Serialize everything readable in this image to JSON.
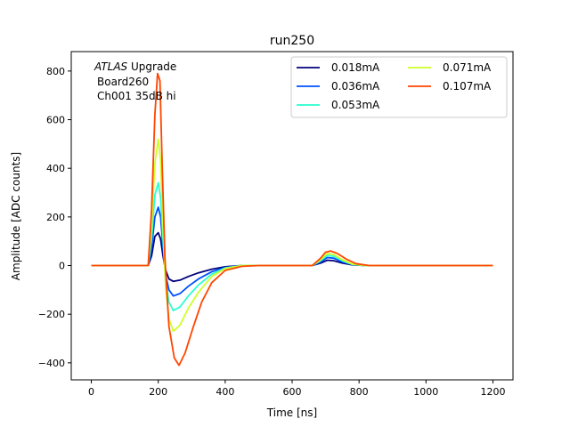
{
  "chart_data": {
    "type": "line",
    "title": "run250",
    "xlabel": "Time [ns]",
    "ylabel": "Amplitude [ADC counts]",
    "xlim": [
      -60,
      1260
    ],
    "ylim": [
      -470,
      880
    ],
    "xticks": [
      0,
      200,
      400,
      600,
      800,
      1000,
      1200
    ],
    "yticks": [
      -400,
      -200,
      0,
      200,
      400,
      600,
      800
    ],
    "grid": false,
    "legend": {
      "placement": "top-right",
      "columns": 2
    },
    "annotation": {
      "line1_italic": "ATLAS",
      "line1_rest": " Upgrade",
      "line2": "Board260",
      "line3": "Ch001 35dB hi"
    },
    "series": [
      {
        "name": "0.018mA",
        "color": "#00007f",
        "points": [
          [
            0,
            0
          ],
          [
            170,
            0
          ],
          [
            180,
            40
          ],
          [
            190,
            120
          ],
          [
            200,
            135
          ],
          [
            207,
            110
          ],
          [
            214,
            40
          ],
          [
            222,
            -20
          ],
          [
            232,
            -55
          ],
          [
            245,
            -65
          ],
          [
            265,
            -60
          ],
          [
            290,
            -45
          ],
          [
            320,
            -30
          ],
          [
            360,
            -15
          ],
          [
            400,
            -5
          ],
          [
            450,
            0
          ],
          [
            660,
            0
          ],
          [
            685,
            10
          ],
          [
            705,
            22
          ],
          [
            725,
            20
          ],
          [
            750,
            10
          ],
          [
            780,
            3
          ],
          [
            820,
            0
          ],
          [
            1200,
            0
          ]
        ]
      },
      {
        "name": "0.036mA",
        "color": "#0050ff",
        "points": [
          [
            0,
            0
          ],
          [
            170,
            0
          ],
          [
            180,
            70
          ],
          [
            190,
            200
          ],
          [
            200,
            240
          ],
          [
            207,
            200
          ],
          [
            214,
            80
          ],
          [
            222,
            -40
          ],
          [
            232,
            -100
          ],
          [
            245,
            -125
          ],
          [
            265,
            -115
          ],
          [
            290,
            -85
          ],
          [
            320,
            -55
          ],
          [
            360,
            -25
          ],
          [
            400,
            -8
          ],
          [
            450,
            0
          ],
          [
            660,
            0
          ],
          [
            685,
            15
          ],
          [
            705,
            33
          ],
          [
            725,
            30
          ],
          [
            750,
            15
          ],
          [
            780,
            4
          ],
          [
            820,
            0
          ],
          [
            1200,
            0
          ]
        ]
      },
      {
        "name": "0.053mA",
        "color": "#29ffce",
        "points": [
          [
            0,
            0
          ],
          [
            170,
            0
          ],
          [
            180,
            110
          ],
          [
            190,
            290
          ],
          [
            200,
            340
          ],
          [
            207,
            280
          ],
          [
            214,
            110
          ],
          [
            222,
            -60
          ],
          [
            232,
            -150
          ],
          [
            245,
            -185
          ],
          [
            265,
            -170
          ],
          [
            290,
            -125
          ],
          [
            320,
            -80
          ],
          [
            360,
            -35
          ],
          [
            400,
            -10
          ],
          [
            450,
            0
          ],
          [
            660,
            0
          ],
          [
            685,
            20
          ],
          [
            705,
            42
          ],
          [
            725,
            38
          ],
          [
            750,
            20
          ],
          [
            780,
            5
          ],
          [
            820,
            0
          ],
          [
            1200,
            0
          ]
        ]
      },
      {
        "name": "0.071mA",
        "color": "#ceff29",
        "points": [
          [
            0,
            0
          ],
          [
            170,
            0
          ],
          [
            180,
            160
          ],
          [
            190,
            420
          ],
          [
            200,
            520
          ],
          [
            207,
            430
          ],
          [
            214,
            170
          ],
          [
            222,
            -90
          ],
          [
            232,
            -220
          ],
          [
            245,
            -270
          ],
          [
            265,
            -245
          ],
          [
            290,
            -175
          ],
          [
            320,
            -110
          ],
          [
            360,
            -45
          ],
          [
            400,
            -12
          ],
          [
            450,
            0
          ],
          [
            660,
            0
          ],
          [
            685,
            24
          ],
          [
            705,
            50
          ],
          [
            725,
            45
          ],
          [
            750,
            24
          ],
          [
            780,
            6
          ],
          [
            820,
            0
          ],
          [
            1200,
            0
          ]
        ]
      },
      {
        "name": "0.107mA",
        "color": "#ff4500",
        "points": [
          [
            0,
            0
          ],
          [
            170,
            0
          ],
          [
            180,
            230
          ],
          [
            190,
            620
          ],
          [
            198,
            790
          ],
          [
            205,
            760
          ],
          [
            212,
            400
          ],
          [
            220,
            30
          ],
          [
            232,
            -250
          ],
          [
            248,
            -380
          ],
          [
            262,
            -410
          ],
          [
            280,
            -360
          ],
          [
            305,
            -250
          ],
          [
            330,
            -150
          ],
          [
            360,
            -70
          ],
          [
            400,
            -20
          ],
          [
            450,
            -3
          ],
          [
            500,
            0
          ],
          [
            660,
            0
          ],
          [
            685,
            30
          ],
          [
            700,
            55
          ],
          [
            715,
            60
          ],
          [
            735,
            50
          ],
          [
            760,
            28
          ],
          [
            790,
            8
          ],
          [
            830,
            0
          ],
          [
            1200,
            0
          ]
        ]
      }
    ]
  }
}
